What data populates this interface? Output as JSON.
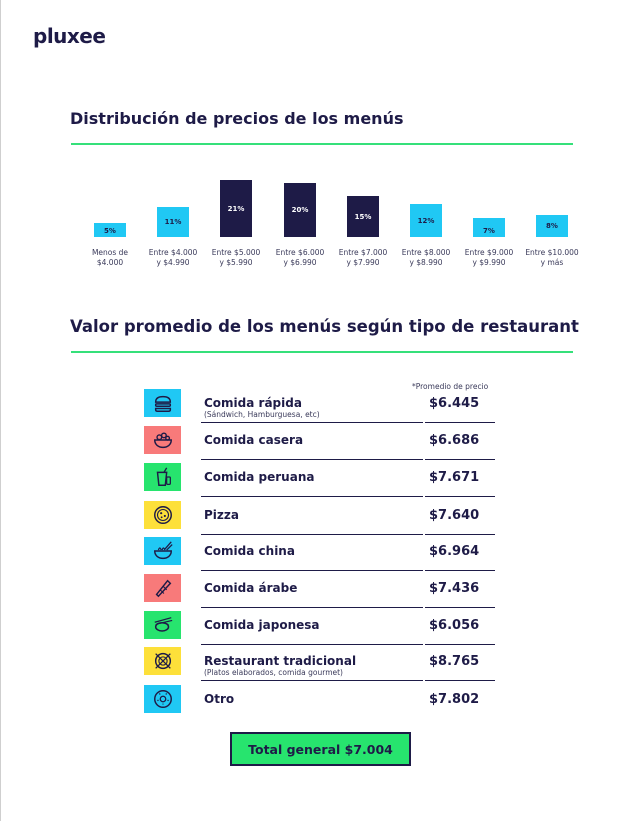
{
  "logo": "pluxee",
  "chart_section": {
    "title": "Distribución de precios de los menús"
  },
  "chart_data": {
    "type": "bar",
    "title": "Distribución de precios de los menús",
    "categories": [
      [
        "Menos de",
        "$4.000"
      ],
      [
        "Entre $4.000",
        "y $4.990"
      ],
      [
        "Entre $5.000",
        "y $5.990"
      ],
      [
        "Entre $6.000",
        "y $6.990"
      ],
      [
        "Entre $7.000",
        "y $7.990"
      ],
      [
        "Entre $8.000",
        "y $8.990"
      ],
      [
        "Entre $9.000",
        "y $9.990"
      ],
      [
        "Entre $10.000",
        "y más"
      ]
    ],
    "values": [
      5,
      11,
      21,
      20,
      15,
      12,
      7,
      8
    ],
    "labels": [
      "5%",
      "11%",
      "21%",
      "20%",
      "15%",
      "12%",
      "7%",
      "8%"
    ],
    "bar_colors": [
      "#20c8f4",
      "#20c8f4",
      "#1e1b47",
      "#1e1b47",
      "#1e1b47",
      "#20c8f4",
      "#20c8f4",
      "#20c8f4"
    ],
    "ylim": [
      0,
      21
    ]
  },
  "table_section": {
    "title": "Valor promedio de los menús según tipo de restaurant",
    "note": "*Promedio de precio",
    "rows": [
      {
        "name": "Comida rápida",
        "sub": "(Sándwich, Hamburguesa, etc)",
        "price": "$6.445",
        "icon": "burger-icon",
        "color": "#20c8f4"
      },
      {
        "name": "Comida casera",
        "sub": "",
        "price": "$6.686",
        "icon": "salad-bowl-icon",
        "color": "#f87a7a"
      },
      {
        "name": "Comida peruana",
        "sub": "",
        "price": "$7.671",
        "icon": "drink-icon",
        "color": "#27e46e"
      },
      {
        "name": "Pizza",
        "sub": "",
        "price": "$7.640",
        "icon": "pizza-icon",
        "color": "#fde03a"
      },
      {
        "name": "Comida china",
        "sub": "",
        "price": "$6.964",
        "icon": "noodles-icon",
        "color": "#20c8f4"
      },
      {
        "name": "Comida árabe",
        "sub": "",
        "price": "$7.436",
        "icon": "wrap-icon",
        "color": "#f87a7a"
      },
      {
        "name": "Comida japonesa",
        "sub": "",
        "price": "$6.056",
        "icon": "sushi-icon",
        "color": "#27e46e"
      },
      {
        "name": "Restaurant tradicional",
        "sub": "(Platos elaborados, comida gourmet)",
        "price": "$8.765",
        "icon": "plate-cutlery-icon",
        "color": "#fde03a"
      },
      {
        "name": "Otro",
        "sub": "",
        "price": "$7.802",
        "icon": "donut-icon",
        "color": "#20c8f4"
      }
    ]
  },
  "total": "Total general $7.004"
}
